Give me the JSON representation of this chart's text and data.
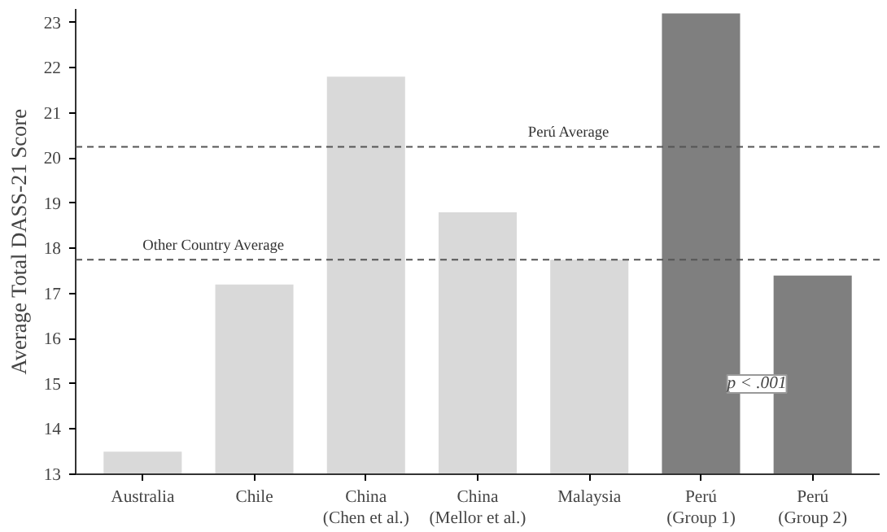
{
  "chart_data": {
    "type": "bar",
    "ylabel": "Average Total DASS-21 Score",
    "categories": [
      "Australia",
      "Chile",
      "China\n(Chen et al.)",
      "China\n(Mellor et al.)",
      "Malaysia",
      "Perú\n(Group 1)",
      "Perú\n(Group 2)"
    ],
    "values": [
      13.5,
      17.2,
      21.8,
      18.8,
      17.75,
      23.2,
      17.4
    ],
    "colors": [
      "#d9d9d9",
      "#d9d9d9",
      "#d9d9d9",
      "#d9d9d9",
      "#d9d9d9",
      "#7f7f7f",
      "#7f7f7f"
    ],
    "ylim": [
      13,
      23.3
    ],
    "yticks": [
      13,
      14,
      15,
      16,
      17,
      18,
      19,
      20,
      21,
      22,
      23
    ],
    "grid": false,
    "ref_lines": [
      {
        "axis": "y",
        "value": 20.25,
        "label": "Perú Average",
        "line_style": "dashed",
        "color": "#555555"
      },
      {
        "axis": "y",
        "value": 17.75,
        "label": "Other Country Average",
        "line_style": "dashed",
        "color": "#555555"
      }
    ],
    "annotations": [
      "p < .001"
    ]
  }
}
